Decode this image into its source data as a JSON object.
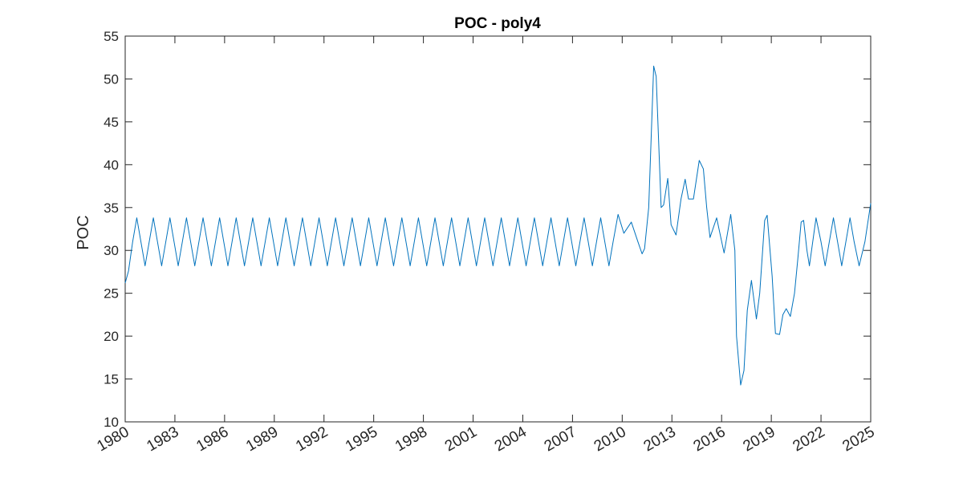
{
  "chart_data": {
    "type": "line",
    "title": "POC - poly4",
    "y_label": "POC",
    "xlim": [
      1980,
      2025
    ],
    "xticks": [
      1980,
      1983,
      1986,
      1989,
      1992,
      1995,
      1998,
      2001,
      2004,
      2007,
      2010,
      2013,
      2016,
      2019,
      2022,
      2025
    ],
    "ylim": [
      10,
      55
    ],
    "yticks": [
      10,
      15,
      20,
      25,
      30,
      35,
      40,
      45,
      50,
      55
    ],
    "series": [
      {
        "name": "POC",
        "color": "#0072BD",
        "x": [
          1980,
          1980.2,
          1980.45,
          1980.7,
          1980.95,
          1981.2,
          1981.45,
          1981.7,
          1981.95,
          1982.2,
          1982.45,
          1982.7,
          1982.95,
          1983.2,
          1983.45,
          1983.7,
          1983.95,
          1984.2,
          1984.45,
          1984.7,
          1984.95,
          1985.2,
          1985.45,
          1985.7,
          1985.95,
          1986.2,
          1986.45,
          1986.7,
          1986.95,
          1987.2,
          1987.45,
          1987.7,
          1987.95,
          1988.2,
          1988.45,
          1988.7,
          1988.95,
          1989.2,
          1989.45,
          1989.7,
          1989.95,
          1990.2,
          1990.45,
          1990.7,
          1990.95,
          1991.2,
          1991.45,
          1991.7,
          1991.95,
          1992.2,
          1992.45,
          1992.7,
          1992.95,
          1993.2,
          1993.45,
          1993.7,
          1993.95,
          1994.2,
          1994.45,
          1994.7,
          1994.95,
          1995.2,
          1995.45,
          1995.7,
          1995.95,
          1996.2,
          1996.45,
          1996.7,
          1996.95,
          1997.2,
          1997.45,
          1997.7,
          1997.95,
          1998.2,
          1998.45,
          1998.7,
          1998.95,
          1999.2,
          1999.45,
          1999.7,
          1999.95,
          2000.2,
          2000.45,
          2000.7,
          2000.95,
          2001.2,
          2001.45,
          2001.7,
          2001.95,
          2002.2,
          2002.45,
          2002.7,
          2002.95,
          2003.2,
          2003.45,
          2003.7,
          2003.95,
          2004.2,
          2004.45,
          2004.7,
          2004.95,
          2005.2,
          2005.45,
          2005.7,
          2005.95,
          2006.2,
          2006.45,
          2006.7,
          2006.95,
          2007.2,
          2007.45,
          2007.7,
          2007.95,
          2008.2,
          2008.45,
          2008.7,
          2008.95,
          2009.2,
          2009.45,
          2009.75,
          2010.1,
          2010.55,
          2010.95,
          2011.2,
          2011.35,
          2011.6,
          2011.9,
          2012.05,
          2012.35,
          2012.5,
          2012.75,
          2012.95,
          2013.25,
          2013.55,
          2013.8,
          2014.0,
          2014.3,
          2014.65,
          2014.9,
          2015.1,
          2015.3,
          2015.7,
          2016.15,
          2016.55,
          2016.8,
          2016.9,
          2017.15,
          2017.35,
          2017.55,
          2017.8,
          2018.1,
          2018.3,
          2018.6,
          2018.75,
          2019.05,
          2019.25,
          2019.5,
          2019.7,
          2019.9,
          2020.15,
          2020.4,
          2020.6,
          2020.8,
          2020.95,
          2021.15,
          2021.3,
          2021.5,
          2021.7,
          2022.0,
          2022.25,
          2022.5,
          2022.75,
          2023.0,
          2023.25,
          2023.5,
          2023.75,
          2024.0,
          2024.3,
          2024.65,
          2025
        ],
        "values": [
          26.2,
          27.6,
          31,
          33.8,
          31,
          28.2,
          31,
          33.8,
          31,
          28.2,
          31,
          33.8,
          31,
          28.2,
          31,
          33.8,
          31,
          28.2,
          31,
          33.8,
          31,
          28.2,
          31,
          33.8,
          31,
          28.2,
          31,
          33.8,
          31,
          28.2,
          31,
          33.8,
          31,
          28.2,
          31,
          33.8,
          31,
          28.2,
          31,
          33.8,
          31,
          28.2,
          31,
          33.8,
          31,
          28.2,
          31,
          33.8,
          31,
          28.2,
          31,
          33.8,
          31,
          28.2,
          31,
          33.8,
          31,
          28.2,
          31,
          33.8,
          31,
          28.2,
          31,
          33.8,
          31,
          28.2,
          31,
          33.8,
          31,
          28.2,
          31,
          33.8,
          31,
          28.2,
          31,
          33.8,
          31,
          28.2,
          31,
          33.8,
          31,
          28.2,
          31,
          33.8,
          31,
          28.2,
          31,
          33.8,
          31,
          28.2,
          31,
          33.8,
          31,
          28.2,
          31,
          33.8,
          31,
          28.2,
          31,
          33.8,
          31,
          28.2,
          31,
          33.8,
          31,
          28.2,
          31,
          33.8,
          31,
          28.2,
          31,
          33.8,
          31,
          28.2,
          31,
          33.8,
          31,
          28.2,
          31,
          34.2,
          32,
          33.3,
          31,
          29.6,
          30.2,
          35,
          51.5,
          50.3,
          35,
          35.3,
          38.4,
          33,
          31.8,
          36,
          38.3,
          36,
          36,
          40.5,
          39.5,
          35,
          31.5,
          33.8,
          29.7,
          34.2,
          30,
          20,
          14.3,
          16,
          23,
          26.5,
          22,
          25,
          33.5,
          34.1,
          27,
          20.3,
          20.2,
          22.5,
          23.2,
          22.3,
          25,
          29,
          33.3,
          33.5,
          30,
          28.2,
          31,
          33.8,
          31,
          28.2,
          31,
          33.8,
          31,
          28.2,
          31,
          33.8,
          31,
          28.2,
          31,
          35.5
        ]
      }
    ]
  }
}
